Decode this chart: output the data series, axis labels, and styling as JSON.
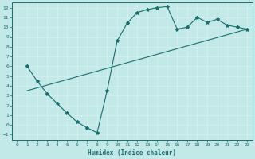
{
  "xlabel": "Humidex (Indice chaleur)",
  "bg_color": "#c2e8e8",
  "line_color": "#1a6e6e",
  "xlim": [
    -0.5,
    23.5
  ],
  "ylim": [
    -1.5,
    12.5
  ],
  "xticks": [
    0,
    1,
    2,
    3,
    4,
    5,
    6,
    7,
    8,
    9,
    10,
    11,
    12,
    13,
    14,
    15,
    16,
    17,
    18,
    19,
    20,
    21,
    22,
    23
  ],
  "yticks": [
    -1,
    0,
    1,
    2,
    3,
    4,
    5,
    6,
    7,
    8,
    9,
    10,
    11,
    12
  ],
  "curve1_x": [
    1,
    2,
    3,
    4,
    5,
    6,
    7,
    8,
    9,
    10,
    11,
    12,
    13,
    14,
    15,
    16,
    17,
    18,
    19,
    20,
    21,
    22,
    23
  ],
  "curve1_y": [
    6.0,
    4.5,
    3.2,
    2.2,
    1.2,
    0.3,
    -0.3,
    -0.8,
    3.5,
    8.6,
    10.4,
    11.5,
    11.8,
    12.0,
    12.1,
    9.8,
    10.0,
    11.0,
    10.5,
    10.8,
    10.2,
    10.0,
    9.8
  ],
  "curve2_x": [
    1,
    23
  ],
  "curve2_y": [
    3.5,
    9.8
  ]
}
